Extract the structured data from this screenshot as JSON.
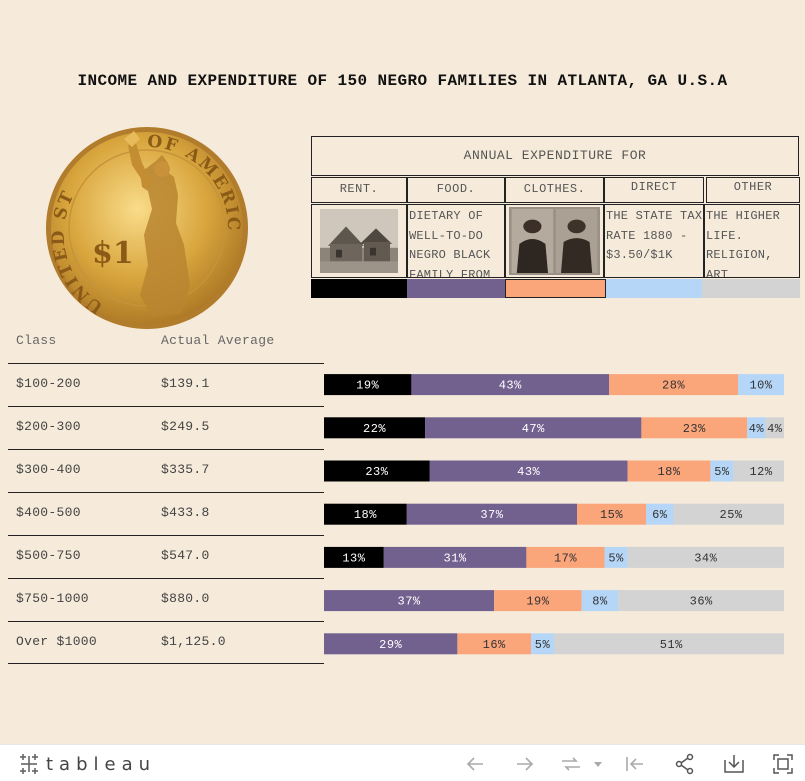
{
  "title": "INCOME AND EXPENDITURE OF 150 NEGRO FAMILIES IN ATLANTA, GA U.S.A",
  "header": {
    "main": "ANNUAL EXPENDITURE FOR"
  },
  "categories": [
    {
      "label": "RENT.",
      "color": "#000000",
      "content": "photo-house"
    },
    {
      "label": "FOOD.",
      "color": "#72608f",
      "content": "DIETARY OF WELL-TO-DO NEGRO BLACK FAMILY FROM"
    },
    {
      "label": "CLOTHES.",
      "color": "#fba57b",
      "content": "photo-couple"
    },
    {
      "label": "DIRECT",
      "color": "#b6d6f8",
      "content": "THE STATE TAX RATE 1880 - $3.50/$1K"
    },
    {
      "label": "OTHER",
      "color": "#d3d3d3",
      "content": "THE HIGHER LIFE. RELIGION, ART"
    }
  ],
  "columns": {
    "class": "Class",
    "average": "Actual Average"
  },
  "rows": [
    {
      "class": "$100-200",
      "average": "$139.1"
    },
    {
      "class": "$200-300",
      "average": "$249.5"
    },
    {
      "class": "$300-400",
      "average": "$335.7"
    },
    {
      "class": "$400-500",
      "average": "$433.8"
    },
    {
      "class": "$500-750",
      "average": "$547.0"
    },
    {
      "class": "$750-1000",
      "average": "$880.0"
    },
    {
      "class": "Over $1000",
      "average": "$1,125.0"
    }
  ],
  "chart_data": {
    "type": "bar",
    "orientation": "horizontal",
    "stacked": true,
    "categories": [
      "$100-200",
      "$200-300",
      "$300-400",
      "$400-500",
      "$500-750",
      "$750-1000",
      "Over $1000"
    ],
    "series": [
      {
        "name": "RENT.",
        "color": "#000000",
        "label_color": "#ffffff",
        "values": [
          19,
          22,
          23,
          18,
          13,
          0,
          0
        ]
      },
      {
        "name": "FOOD.",
        "color": "#72608f",
        "label_color": "#ffffff",
        "values": [
          43,
          47,
          43,
          37,
          31,
          37,
          29
        ]
      },
      {
        "name": "CLOTHES.",
        "color": "#fba57b",
        "label_color": "#333333",
        "values": [
          28,
          23,
          18,
          15,
          17,
          19,
          16
        ]
      },
      {
        "name": "DIRECT",
        "color": "#b6d6f8",
        "label_color": "#333333",
        "values": [
          10,
          4,
          5,
          6,
          5,
          8,
          5
        ]
      },
      {
        "name": "OTHER",
        "color": "#d3d3d3",
        "label_color": "#333333",
        "values": [
          0,
          4,
          12,
          25,
          34,
          36,
          51
        ]
      }
    ],
    "value_labels": [
      [
        "19%",
        "43%",
        "28%",
        "10%",
        ""
      ],
      [
        "22%",
        "47%",
        "23%",
        "4%",
        "4%"
      ],
      [
        "23%",
        "43%",
        "18%",
        "5%",
        "12%"
      ],
      [
        "18%",
        "37%",
        "15%",
        "6%",
        "25%"
      ],
      [
        "13%",
        "31%",
        "17%",
        "5%",
        "34%"
      ],
      [
        "",
        "37%",
        "19%",
        "8%",
        "36%"
      ],
      [
        "",
        "29%",
        "16%",
        "5%",
        "51%"
      ]
    ],
    "xlim": [
      0,
      100
    ],
    "unit": "%",
    "grid": false,
    "legend": "top"
  },
  "toolbar": {
    "logo": "tableau",
    "buttons": [
      "undo-icon",
      "redo-icon",
      "revert-icon",
      "reset-icon",
      "share-icon",
      "download-icon",
      "fullscreen-icon"
    ]
  }
}
